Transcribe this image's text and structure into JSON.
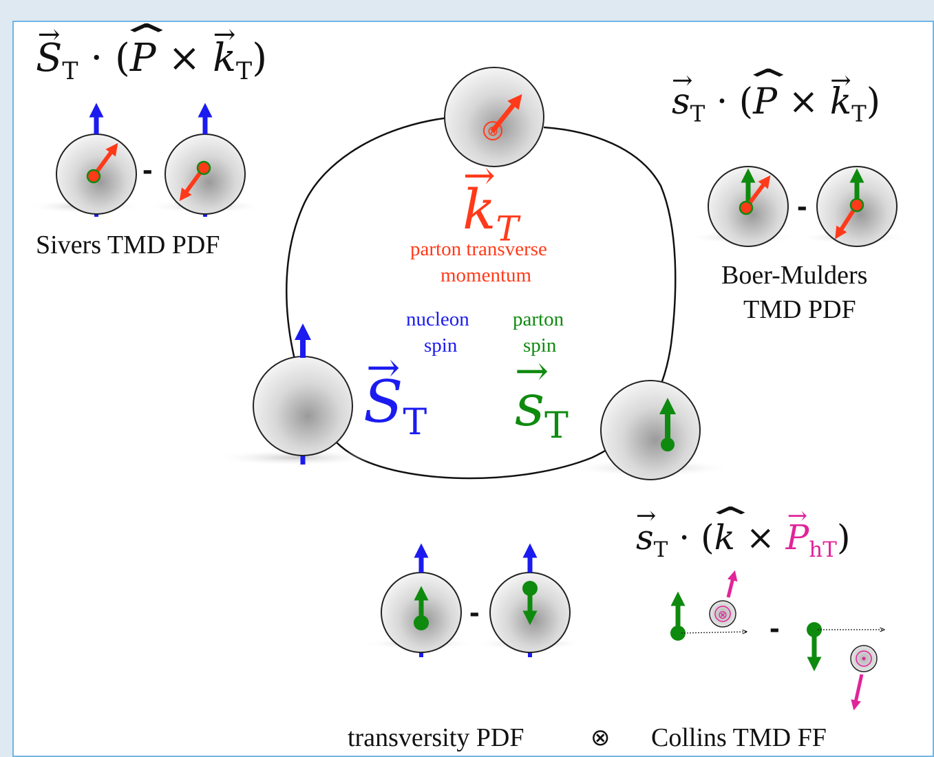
{
  "labels": {
    "sivers": "Sivers TMD PDF",
    "boer_mulders_line1": "Boer-Mulders",
    "boer_mulders_line2": "TMD PDF",
    "kt_desc_line1": "parton transverse",
    "kt_desc_line2": "momentum",
    "nucleon_spin_line1": "nucleon",
    "nucleon_spin_line2": "spin",
    "parton_spin_line1": "parton",
    "parton_spin_line2": "spin",
    "transversity": "transversity PDF",
    "otimes": "⊗",
    "collins": "Collins TMD FF",
    "minus": "-"
  },
  "formulas": {
    "sivers": {
      "S": "S",
      "T": "T",
      "dot": "·",
      "P": "P",
      "x": "×",
      "k": "k"
    },
    "boer": {
      "s": "s",
      "T": "T",
      "dot": "·",
      "P": "P",
      "x": "×",
      "k": "k"
    },
    "collins": {
      "s": "s",
      "T": "T",
      "dot": "·",
      "k": "k",
      "x": "×",
      "P": "P",
      "hT": "hT"
    },
    "kT": {
      "k": "k",
      "T": "T"
    },
    "ST": {
      "S": "S",
      "T": "T"
    },
    "sT": {
      "s": "s",
      "T": "T"
    }
  },
  "colors": {
    "blue": "#1b1bf0",
    "red": "#ff3a1a",
    "green": "#0e8a0e",
    "magenta": "#e0249a",
    "frame": "#6fb6e6"
  }
}
